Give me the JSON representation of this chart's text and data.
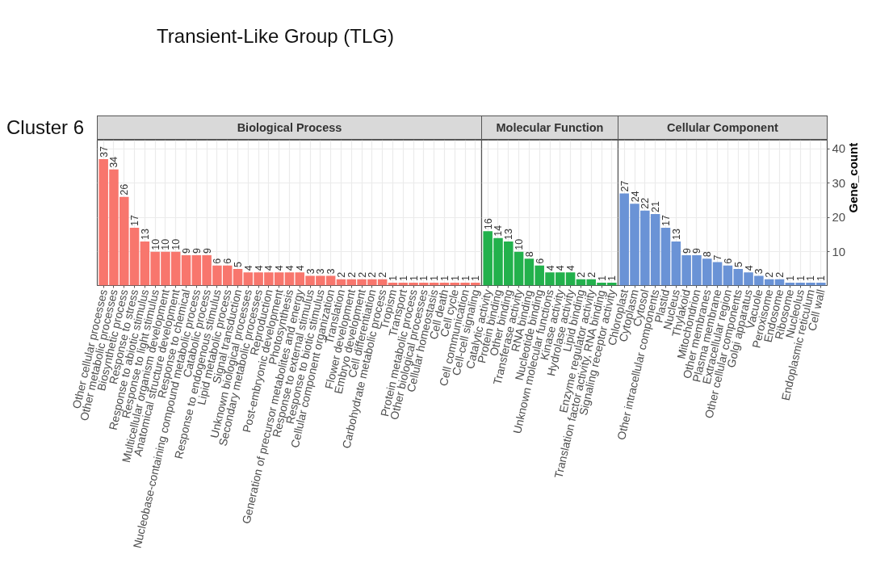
{
  "chart_data": [
    {
      "type": "bar",
      "title": "Biological Process",
      "annotations": [
        "Transient-Like Group (TLG)",
        "Cluster 6"
      ],
      "categories": [
        "Other cellular processes",
        "Other metabolic processes",
        "Biosynthetic process",
        "Response to stress",
        "Response to abiotic stimulus",
        "Response to light stimulus",
        "Multicellular organism development",
        "Anatomical structure development",
        "Response to chemical",
        "Nucleobase-containing compound metabolic process",
        "Catabolic process",
        "Response to endogenous stimulus",
        "Lipid metabolic process",
        "Signal transduction",
        "Unknown biological processes",
        "Secondary metabolic processes",
        "Reproduction",
        "Post-embryonic development",
        "Photosynthesis",
        "Generation of precursor metabolites and energy",
        "Response to external stimulus",
        "Response to biotic stimulus",
        "Cellular component organization",
        "Translation",
        "Flower development",
        "Embryo development",
        "Cell differentiation",
        "Carbohydrate metabolic process",
        "Tropism",
        "Transport",
        "Protein metabolic process",
        "Other biological processes",
        "Cellular homeostasis",
        "Cell death",
        "Cell cycle",
        "Cell communication",
        "Cell-cell signaling"
      ],
      "values": [
        37,
        34,
        26,
        17,
        13,
        10,
        10,
        10,
        9,
        9,
        9,
        6,
        6,
        5,
        4,
        4,
        4,
        4,
        4,
        4,
        3,
        3,
        3,
        2,
        2,
        2,
        2,
        2,
        1,
        1,
        1,
        1,
        1,
        1,
        1,
        1,
        1
      ],
      "color": "#f8766d",
      "ylim": [
        0.2,
        42.5
      ],
      "yticks": [
        10,
        20,
        30,
        40
      ],
      "grid": true,
      "data_labels": true,
      "tick_labels": "x"
    },
    {
      "type": "bar",
      "title": "Molecular Function",
      "categories": [
        "Catalytic activity",
        "Protein binding",
        "Other binding",
        "Transferase activity",
        "RNA binding",
        "Nucleotide binding",
        "Unknown molecular functions",
        "Kinase activity",
        "Hydrolase activity",
        "Lipid binding",
        "Enzyme regulator activity",
        "Translation factor activity, RNA binding",
        "Signaling receptor activity"
      ],
      "values": [
        16,
        14,
        13,
        10,
        8,
        6,
        4,
        4,
        4,
        2,
        2,
        1,
        1
      ],
      "color": "#22b14c",
      "ylim": [
        0.2,
        42.5
      ],
      "yticks": [
        10,
        20,
        30,
        40
      ],
      "grid": true,
      "data_labels": true,
      "tick_labels": "x"
    },
    {
      "type": "bar",
      "title": "Cellular Component",
      "ylabel": "Gene_count",
      "categories": [
        "Chloroplast",
        "Cytoplasm",
        "Cytosol",
        "Other intracellular components",
        "Plastid",
        "Nucleus",
        "Thylakoid",
        "Mitochondrion",
        "Other membranes",
        "Plasma membrane",
        "Extracellular region",
        "Other cellular components",
        "Golgi apparatus",
        "Vacuole",
        "Peroxisome",
        "Endosome",
        "Ribosome",
        "Nucleolus",
        "Endoplasmic reticulum",
        "Cell wall"
      ],
      "values": [
        27,
        24,
        22,
        21,
        17,
        13,
        9,
        9,
        8,
        7,
        6,
        5,
        4,
        3,
        2,
        2,
        1,
        1,
        1,
        1
      ],
      "color": "#6a93d6",
      "ylim": [
        0.2,
        42.5
      ],
      "yticks": [
        10,
        20,
        30,
        40
      ],
      "grid": true,
      "data_labels": true
    }
  ]
}
